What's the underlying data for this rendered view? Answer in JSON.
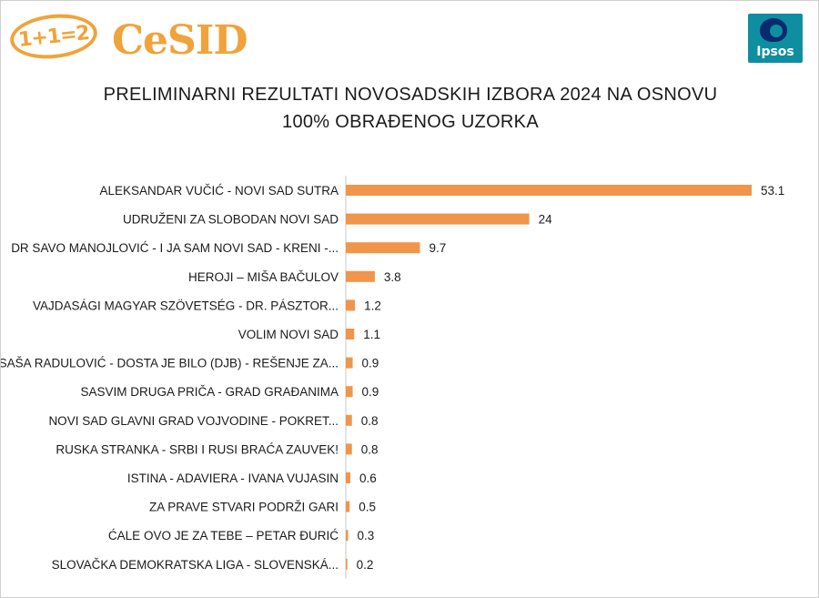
{
  "logos": {
    "cesid_badge": "1+1=2",
    "cesid_name": "CeSID",
    "ipsos_name": "Ipsos"
  },
  "colors": {
    "bar": "#f0954a",
    "axis": "#c8c8c8",
    "logo_orange": "#f0a33a",
    "ipsos_teal": "#0f8ea2"
  },
  "chart_data": {
    "type": "bar",
    "orientation": "horizontal",
    "title_line1": "PRELIMINARNI REZULTATI NOVOSADSKIH IZBORA 2024 NA OSNOVU",
    "title_line2": "100% OBRAĐENOG UZORKA",
    "categories": [
      "ALEKSANDAR VUČIĆ - NOVI SAD SUTRA",
      "UDRUŽENI ZA SLOBODAN NOVI SAD",
      "DR SAVO MANOJLOVIĆ - I JA SAM NOVI SAD - KRENI -...",
      "HEROJI – MIŠA BAČULOV",
      "VAJDASÁGI MAGYAR SZÖVETSÉG - DR. PÁSZTOR...",
      "VOLIM NOVI SAD",
      "SAŠA RADULOVIĆ - DOSTA JE BILO (DJB) - REŠENJE ZA...",
      "SASVIM DRUGA PRIČA - GRAD GRAĐANIMA",
      "NOVI SAD GLAVNI GRAD VOJVODINE - POKRET...",
      "RUSKA STRANKA - SRBI I RUSI BRAĆA ZAUVEK!",
      "ISTINA - ADAVIERA - IVANA VUJASIN",
      "ZA PRAVE STVARI PODRŽI GARI",
      "ĆALE OVO JE ZA TEBE – PETAR ĐURIĆ",
      "SLOVAČKA DEMOKRATSKA LIGA - SLOVENSKÁ..."
    ],
    "values": [
      53.1,
      24,
      9.7,
      3.8,
      1.2,
      1.1,
      0.9,
      0.9,
      0.8,
      0.8,
      0.6,
      0.5,
      0.3,
      0.2
    ],
    "value_labels": [
      "53.1",
      "24",
      "9.7",
      "3.8",
      "1.2",
      "1.1",
      "0.9",
      "0.9",
      "0.8",
      "0.8",
      "0.6",
      "0.5",
      "0.3",
      "0.2"
    ],
    "xlim": [
      0,
      53.1
    ],
    "grid": false,
    "legend": "none"
  }
}
